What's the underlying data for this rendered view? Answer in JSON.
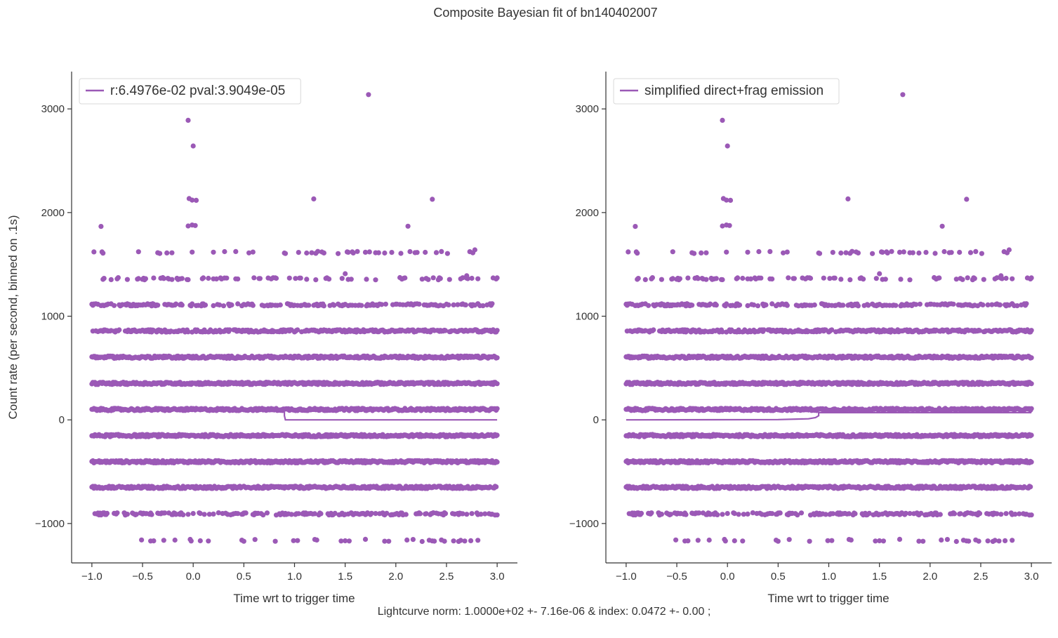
{
  "figure": {
    "suptitle": "Composite Bayesian fit of bn140402007",
    "footer": "Lightcurve norm: 1.0000e+02 +- 7.16e-06 & index: 0.0472 +- 0.00 ;",
    "accent_color": "#9b59b6"
  },
  "chart_data": [
    {
      "type": "scatter",
      "title": "",
      "xlabel": "Time wrt to trigger time",
      "ylabel": "Count rate (per second, binned on .1s)",
      "xlim": [
        -1.2,
        3.2
      ],
      "ylim": [
        -1380,
        3360
      ],
      "xticks": [
        -1.0,
        -0.5,
        0.0,
        0.5,
        1.0,
        1.5,
        2.0,
        2.5,
        3.0
      ],
      "xtick_labels": [
        "−1.0",
        "−0.5",
        "0.0",
        "0.5",
        "1.0",
        "1.5",
        "2.0",
        "2.5",
        "3.0"
      ],
      "yticks": [
        -1000,
        0,
        1000,
        2000,
        3000
      ],
      "ytick_labels": [
        "−1000",
        "0",
        "1000",
        "2000",
        "3000"
      ],
      "grid": false,
      "legend": {
        "position": "top-left",
        "entries": [
          "r:6.4976e-02  pval:3.9049e-05"
        ]
      },
      "series": [
        {
          "kind": "scatter",
          "color": "#9b59b6",
          "bands": [
            {
              "y": -1163,
              "density": 0.1
            },
            {
              "y": -907,
              "density": 0.45
            },
            {
              "y": -651,
              "density": 0.92
            },
            {
              "y": -404,
              "density": 1.0
            },
            {
              "y": -152,
              "density": 1.0
            },
            {
              "y": 100,
              "density": 1.0
            },
            {
              "y": 352,
              "density": 1.0
            },
            {
              "y": 605,
              "density": 0.95
            },
            {
              "y": 858,
              "density": 0.75
            },
            {
              "y": 1110,
              "density": 0.42
            },
            {
              "y": 1362,
              "density": 0.22
            },
            {
              "y": 1615,
              "density": 0.11
            }
          ],
          "points": [
            [
              -0.91,
              1866
            ],
            [
              -0.05,
              1870
            ],
            [
              -0.01,
              1880
            ],
            [
              0.02,
              1875
            ],
            [
              2.12,
              1868
            ],
            [
              -0.04,
              2135
            ],
            [
              -0.01,
              2120
            ],
            [
              0.03,
              2118
            ],
            [
              1.19,
              2132
            ],
            [
              2.36,
              2128
            ],
            [
              -0.05,
              2890
            ],
            [
              0.0,
              2642
            ],
            [
              1.73,
              3138
            ],
            [
              1.5,
              1410
            ],
            [
              2.78,
              1640
            ],
            [
              2.7,
              1390
            ]
          ]
        },
        {
          "kind": "line",
          "name": "r:6.4976e-02  pval:3.9049e-05",
          "color": "#9b59b6",
          "x": [
            -1.0,
            0.9,
            0.9,
            0.91,
            3.0
          ],
          "y": [
            88,
            92,
            40,
            0,
            0
          ]
        }
      ]
    },
    {
      "type": "scatter",
      "title": "",
      "xlabel": "Time wrt to trigger time",
      "ylabel": "",
      "xlim": [
        -1.2,
        3.2
      ],
      "ylim": [
        -1380,
        3360
      ],
      "xticks": [
        -1.0,
        -0.5,
        0.0,
        0.5,
        1.0,
        1.5,
        2.0,
        2.5,
        3.0
      ],
      "xtick_labels": [
        "−1.0",
        "−0.5",
        "0.0",
        "0.5",
        "1.0",
        "1.5",
        "2.0",
        "2.5",
        "3.0"
      ],
      "yticks": [
        -1000,
        0,
        1000,
        2000,
        3000
      ],
      "ytick_labels": [
        "−1000",
        "0",
        "1000",
        "2000",
        "3000"
      ],
      "grid": false,
      "legend": {
        "position": "top-left",
        "entries": [
          "simplified direct+frag emission"
        ]
      },
      "series": [
        {
          "kind": "scatter",
          "color": "#9b59b6",
          "bands": [
            {
              "y": -1163,
              "density": 0.1
            },
            {
              "y": -907,
              "density": 0.45
            },
            {
              "y": -651,
              "density": 0.92
            },
            {
              "y": -404,
              "density": 1.0
            },
            {
              "y": -152,
              "density": 1.0
            },
            {
              "y": 100,
              "density": 1.0
            },
            {
              "y": 352,
              "density": 1.0
            },
            {
              "y": 605,
              "density": 0.95
            },
            {
              "y": 858,
              "density": 0.75
            },
            {
              "y": 1110,
              "density": 0.42
            },
            {
              "y": 1362,
              "density": 0.22
            },
            {
              "y": 1615,
              "density": 0.11
            }
          ],
          "points": [
            [
              -0.91,
              1866
            ],
            [
              -0.05,
              1870
            ],
            [
              -0.01,
              1880
            ],
            [
              0.02,
              1875
            ],
            [
              2.12,
              1868
            ],
            [
              -0.04,
              2135
            ],
            [
              -0.01,
              2120
            ],
            [
              0.03,
              2118
            ],
            [
              1.19,
              2132
            ],
            [
              2.36,
              2128
            ],
            [
              -0.05,
              2890
            ],
            [
              0.0,
              2642
            ],
            [
              1.73,
              3138
            ],
            [
              1.5,
              1410
            ],
            [
              2.78,
              1640
            ],
            [
              2.7,
              1390
            ]
          ]
        },
        {
          "kind": "line",
          "name": "simplified direct+frag emission",
          "color": "#9b59b6",
          "x": [
            -1.0,
            0.5,
            0.8,
            0.87,
            0.9,
            0.9,
            3.0
          ],
          "y": [
            0,
            3,
            10,
            22,
            40,
            70,
            70
          ]
        }
      ]
    }
  ]
}
